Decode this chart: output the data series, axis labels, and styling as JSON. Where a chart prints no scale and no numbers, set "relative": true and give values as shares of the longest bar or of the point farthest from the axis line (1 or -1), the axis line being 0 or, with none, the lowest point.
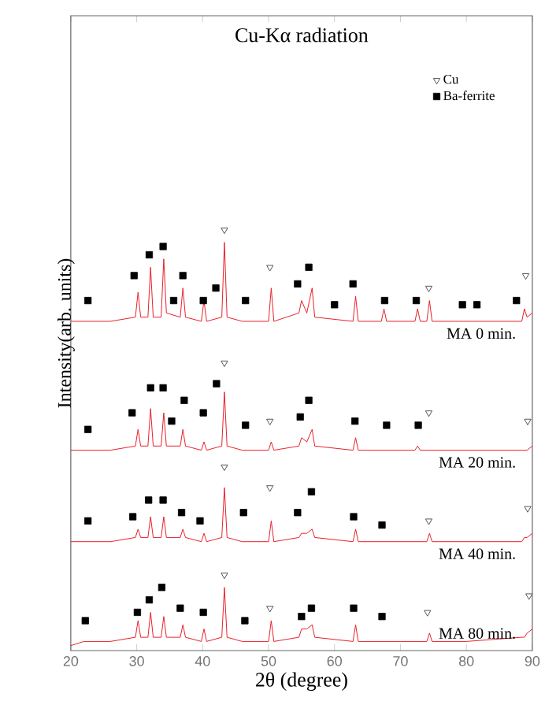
{
  "chart_data": {
    "type": "line",
    "title": "Cu-Kα radiation",
    "xlabel": "2θ (degree)",
    "ylabel": "Intensity(arb. units)",
    "relative": true,
    "legend": "top right",
    "xlim": [
      20,
      90
    ],
    "xticks": [
      20,
      30,
      40,
      50,
      60,
      70,
      80,
      90
    ],
    "x": [
      20,
      22,
      26,
      29.8,
      30.2,
      30.6,
      31.7,
      32.1,
      32.5,
      33.7,
      34.1,
      34.5,
      36.6,
      37.0,
      37.4,
      39.8,
      40.2,
      40.6,
      42.9,
      43.3,
      43.7,
      46,
      50.0,
      50.4,
      50.8,
      54.6,
      55.0,
      55.8,
      56.6,
      57.0,
      62.8,
      63.2,
      63.6,
      67.1,
      67.5,
      67.9,
      72.2,
      72.6,
      73.0,
      74.0,
      74.4,
      74.8,
      80,
      88.4,
      88.8,
      89.2,
      90
    ],
    "series": [
      {
        "name": "MA 0 min.",
        "color": "#e8202a",
        "values": [
          0.78,
          0.78,
          0.78,
          0.79,
          0.85,
          0.79,
          0.79,
          0.91,
          0.79,
          0.79,
          0.93,
          0.8,
          0.79,
          0.86,
          0.79,
          0.78,
          0.83,
          0.78,
          0.79,
          0.97,
          0.79,
          0.78,
          0.78,
          0.86,
          0.78,
          0.8,
          0.83,
          0.8,
          0.86,
          0.79,
          0.78,
          0.84,
          0.78,
          0.78,
          0.81,
          0.78,
          0.78,
          0.81,
          0.78,
          0.78,
          0.83,
          0.78,
          0.78,
          0.78,
          0.81,
          0.79,
          0.8
        ]
      },
      {
        "name": "MA 20 min.",
        "color": "#e8202a",
        "values": [
          0.47,
          0.47,
          0.47,
          0.48,
          0.52,
          0.48,
          0.48,
          0.57,
          0.48,
          0.48,
          0.56,
          0.48,
          0.48,
          0.52,
          0.48,
          0.47,
          0.49,
          0.47,
          0.48,
          0.61,
          0.48,
          0.47,
          0.47,
          0.49,
          0.47,
          0.48,
          0.5,
          0.49,
          0.52,
          0.48,
          0.47,
          0.5,
          0.47,
          0.47,
          0.47,
          0.47,
          0.47,
          0.48,
          0.47,
          0.47,
          0.47,
          0.47,
          0.47,
          0.47,
          0.47,
          0.47,
          0.48
        ]
      },
      {
        "name": "MA 40 min.",
        "color": "#e8202a",
        "values": [
          0.25,
          0.25,
          0.25,
          0.26,
          0.28,
          0.26,
          0.26,
          0.31,
          0.26,
          0.26,
          0.31,
          0.26,
          0.26,
          0.28,
          0.26,
          0.25,
          0.27,
          0.25,
          0.26,
          0.38,
          0.26,
          0.25,
          0.25,
          0.3,
          0.25,
          0.26,
          0.27,
          0.27,
          0.28,
          0.26,
          0.25,
          0.28,
          0.25,
          0.25,
          0.25,
          0.25,
          0.25,
          0.25,
          0.25,
          0.25,
          0.27,
          0.25,
          0.25,
          0.25,
          0.26,
          0.26,
          0.27
        ]
      },
      {
        "name": "MA 80 min.",
        "color": "#e8202a",
        "values": [
          0.0,
          0.01,
          0.01,
          0.02,
          0.06,
          0.02,
          0.02,
          0.08,
          0.02,
          0.02,
          0.07,
          0.02,
          0.02,
          0.05,
          0.02,
          0.01,
          0.04,
          0.01,
          0.02,
          0.14,
          0.02,
          0.01,
          0.01,
          0.06,
          0.01,
          0.02,
          0.04,
          0.04,
          0.05,
          0.02,
          0.01,
          0.05,
          0.01,
          0.01,
          0.01,
          0.01,
          0.01,
          0.01,
          0.01,
          0.01,
          0.03,
          0.01,
          0.01,
          0.02,
          0.02,
          0.03,
          0.04
        ]
      },
      {
        "name": "Cu",
        "type": "scatter",
        "marker": "triangle",
        "color": "#555555",
        "x": [
          43.3,
          50.2,
          74.3,
          89.0,
          43.3,
          50.2,
          74.3,
          89.3,
          43.3,
          50.2,
          74.3,
          89.3,
          43.3,
          50.2,
          74.1,
          89.5
        ],
        "values": [
          1.0,
          0.91,
          0.86,
          0.89,
          0.68,
          0.54,
          0.56,
          0.54,
          0.43,
          0.38,
          0.3,
          0.33,
          0.17,
          0.09,
          0.08,
          0.12
        ]
      },
      {
        "name": "Ba-ferrite",
        "type": "scatter",
        "marker": "square",
        "color": "#000000",
        "x": [
          22.6,
          29.6,
          31.9,
          34.0,
          35.6,
          37.0,
          40.1,
          42.0,
          46.5,
          54.4,
          56.1,
          60.0,
          62.8,
          67.6,
          72.4,
          79.4,
          81.6,
          87.6,
          22.6,
          29.3,
          32.1,
          34.0,
          35.3,
          37.2,
          40.1,
          42.1,
          46.5,
          54.8,
          56.1,
          63.1,
          67.9,
          72.7,
          22.6,
          29.4,
          31.8,
          34.0,
          36.8,
          39.6,
          46.2,
          54.4,
          56.5,
          62.9,
          67.2,
          22.2,
          30.1,
          31.9,
          33.8,
          36.6,
          40.1,
          46.4,
          55.0,
          56.5,
          62.9,
          67.2
        ],
        "values": [
          0.83,
          0.89,
          0.94,
          0.96,
          0.83,
          0.89,
          0.83,
          0.86,
          0.83,
          0.87,
          0.91,
          0.82,
          0.87,
          0.83,
          0.83,
          0.82,
          0.82,
          0.83,
          0.52,
          0.56,
          0.62,
          0.62,
          0.54,
          0.59,
          0.56,
          0.63,
          0.53,
          0.55,
          0.59,
          0.54,
          0.53,
          0.53,
          0.3,
          0.31,
          0.35,
          0.35,
          0.32,
          0.3,
          0.32,
          0.32,
          0.37,
          0.31,
          0.29,
          0.06,
          0.08,
          0.11,
          0.14,
          0.09,
          0.08,
          0.06,
          0.07,
          0.09,
          0.09,
          0.07
        ]
      }
    ]
  }
}
